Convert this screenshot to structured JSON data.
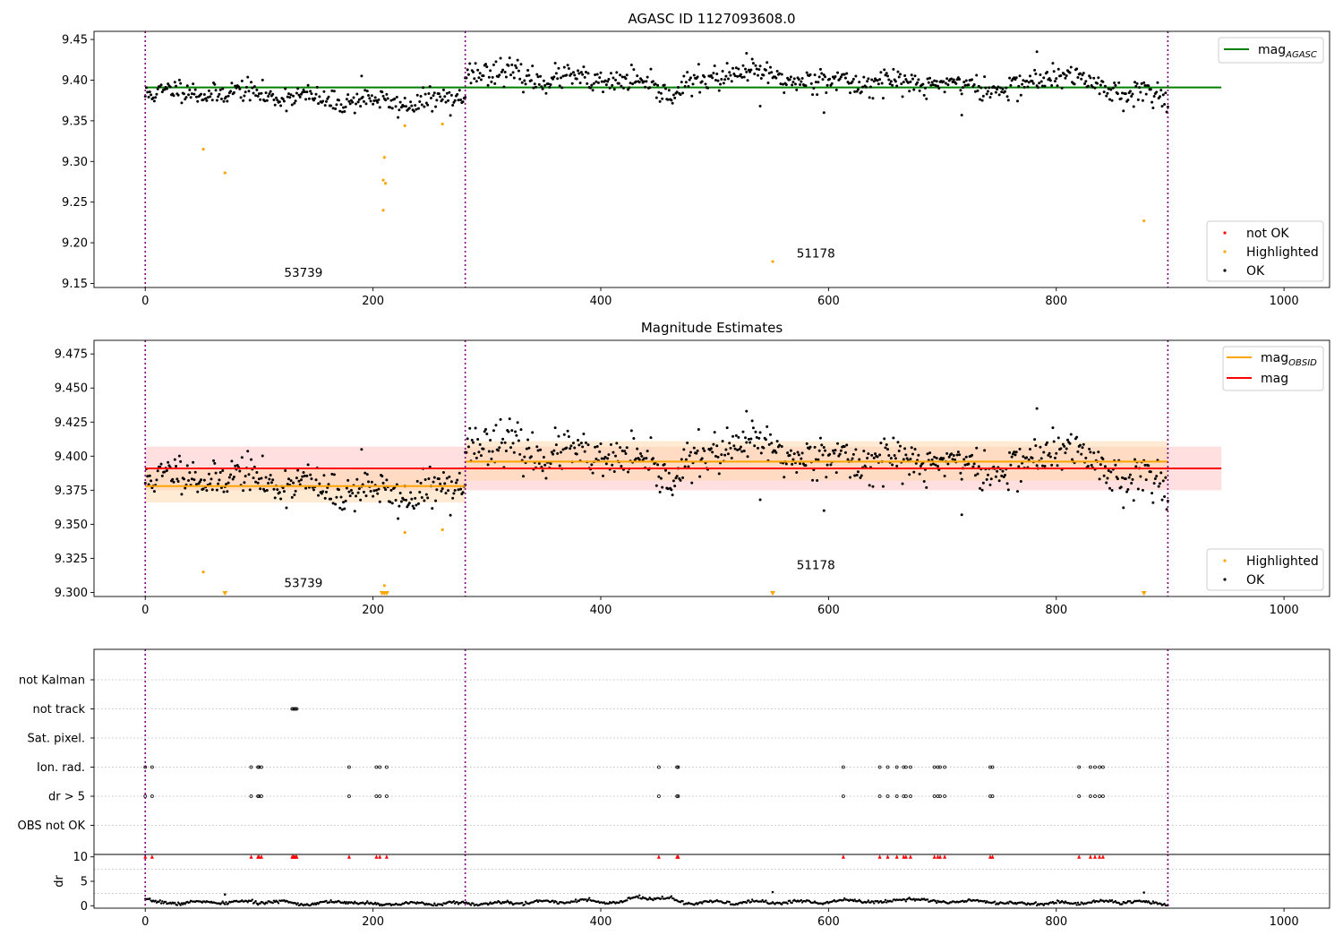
{
  "chart_data": [
    {
      "type": "scatter",
      "title": "AGASC ID 1127093608.0",
      "xlim": [
        -45,
        1040
      ],
      "ylim": [
        9.145,
        9.46
      ],
      "xticks": [
        0,
        200,
        400,
        600,
        800,
        1000
      ],
      "yticks": [
        9.15,
        9.2,
        9.25,
        9.3,
        9.35,
        9.4,
        9.45
      ],
      "ytick_labels": [
        "9.15",
        "9.20",
        "9.25",
        "9.30",
        "9.35",
        "9.40",
        "9.45"
      ],
      "obs_boundaries": [
        0,
        281,
        898
      ],
      "annotations": [
        {
          "text": "53739",
          "x": 122,
          "y": 9.158
        },
        {
          "text": "51178",
          "x": 572,
          "y": 9.182
        }
      ],
      "lines": [
        {
          "name": "mag_AGASC",
          "value": 9.391,
          "x": [
            0,
            945
          ],
          "color": "#008000"
        }
      ],
      "series": [
        {
          "name": "not OK",
          "color": "#ff0000",
          "points": []
        },
        {
          "name": "Highlighted",
          "color": "#ffa500",
          "points": [
            [
              51,
              9.315
            ],
            [
              70,
              9.286
            ],
            [
              210,
              9.305
            ],
            [
              209,
              9.277
            ],
            [
              211,
              9.273
            ],
            [
              209,
              9.24
            ],
            [
              228,
              9.344
            ],
            [
              261,
              9.346
            ],
            [
              551,
              9.177
            ],
            [
              877,
              9.227
            ]
          ]
        },
        {
          "name": "OK",
          "color": "#000000",
          "segments": [
            {
              "x": [
                0,
                281
              ],
              "trend": [
                [
                  0,
                  9.386
                ],
                [
                  100,
                  9.384
                ],
                [
                  150,
                  9.376
                ],
                [
                  200,
                  9.374
                ],
                [
                  240,
                  9.372
                ],
                [
                  281,
                  9.377
                ]
              ],
              "noise": 0.009,
              "seed": 11
            },
            {
              "x": [
                281,
                898
              ],
              "trend": [
                [
                  281,
                  9.414
                ],
                [
                  350,
                  9.402
                ],
                [
                  420,
                  9.398
                ],
                [
                  460,
                  9.386
                ],
                [
                  520,
                  9.41
                ],
                [
                  560,
                  9.402
                ],
                [
                  590,
                  9.4
                ],
                [
                  620,
                  9.398
                ],
                [
                  700,
                  9.396
                ],
                [
                  760,
                  9.388
                ],
                [
                  800,
                  9.408
                ],
                [
                  840,
                  9.392
                ],
                [
                  898,
                  9.378
                ]
              ],
              "noise": 0.01,
              "seed": 23
            }
          ],
          "extreme_points": [
            [
              190,
              9.405
            ],
            [
              528,
              9.433
            ],
            [
              783,
              9.435
            ],
            [
              596,
              9.36
            ],
            [
              717,
              9.357
            ],
            [
              540,
              9.368
            ]
          ]
        }
      ],
      "legend_upper": [
        "mag_AGASC"
      ],
      "legend_lower": [
        "not OK",
        "Highlighted",
        "OK"
      ]
    },
    {
      "type": "scatter",
      "title": "Magnitude Estimates",
      "xlim": [
        -45,
        1040
      ],
      "ylim": [
        9.297,
        9.485
      ],
      "xticks": [
        0,
        200,
        400,
        600,
        800,
        1000
      ],
      "yticks": [
        9.3,
        9.325,
        9.35,
        9.375,
        9.4,
        9.425,
        9.45,
        9.475
      ],
      "ytick_labels": [
        "9.300",
        "9.325",
        "9.350",
        "9.375",
        "9.400",
        "9.425",
        "9.450",
        "9.475"
      ],
      "obs_boundaries": [
        0,
        281,
        898
      ],
      "annotations": [
        {
          "text": "53739",
          "x": 122,
          "y": 9.304
        },
        {
          "text": "51178",
          "x": 572,
          "y": 9.317
        }
      ],
      "bands": [
        {
          "x": [
            0,
            945
          ],
          "y": [
            9.375,
            9.407
          ],
          "color": "#ffc0c0",
          "opacity": 0.5
        },
        {
          "x": [
            0,
            281
          ],
          "y": [
            9.366,
            9.39
          ],
          "color": "#ffd8a8",
          "opacity": 0.5
        },
        {
          "x": [
            281,
            898
          ],
          "y": [
            9.382,
            9.411
          ],
          "color": "#ffd8a8",
          "opacity": 0.5
        }
      ],
      "lines": [
        {
          "name": "mag_OBSID",
          "color": "#ffa500",
          "segments": [
            {
              "x": [
                0,
                281
              ],
              "y": 9.378
            },
            {
              "x": [
                281,
                898
              ],
              "y": 9.396
            }
          ]
        },
        {
          "name": "mag",
          "color": "#ff0000",
          "segments": [
            {
              "x": [
                0,
                945
              ],
              "y": 9.391
            }
          ]
        }
      ],
      "series": [
        {
          "name": "Highlighted",
          "color": "#ffa500",
          "points": [
            [
              51,
              9.315
            ],
            [
              210,
              9.305
            ],
            [
              228,
              9.344
            ],
            [
              261,
              9.346
            ]
          ],
          "clipped_below": [
            70,
            208,
            210,
            212,
            551,
            877
          ]
        },
        {
          "name": "OK",
          "color": "#000000",
          "same_as_panel_1": true
        }
      ],
      "legend_upper": [
        "mag_OBSID",
        "mag"
      ],
      "legend_lower": [
        "Highlighted",
        "OK"
      ]
    },
    {
      "type": "scatter",
      "title": "",
      "xlim": [
        -45,
        1040
      ],
      "categories": [
        "not Kalman",
        "not track",
        "Sat. pixel.",
        "Ion. rad.",
        "dr > 5",
        "OBS not OK"
      ],
      "flags": {
        "not Kalman": [],
        "not track": [
          129,
          130,
          131,
          132,
          133
        ],
        "Sat. pixel.": [],
        "Ion. rad.": [
          0,
          6,
          93,
          99,
          100,
          102,
          179,
          203,
          206,
          212,
          451,
          467,
          468,
          613,
          645,
          652,
          660,
          666,
          668,
          672,
          693,
          696,
          698,
          702,
          742,
          744,
          820,
          830,
          834,
          838,
          841
        ],
        "dr > 5": [
          0,
          6,
          93,
          99,
          100,
          102,
          179,
          203,
          206,
          212,
          451,
          467,
          468,
          613,
          645,
          652,
          660,
          666,
          668,
          672,
          693,
          696,
          698,
          702,
          742,
          744,
          820,
          830,
          834,
          838,
          841
        ],
        "OBS not OK": []
      }
    },
    {
      "type": "scatter",
      "title": "",
      "ylabel": "dr",
      "xlim": [
        -45,
        1040
      ],
      "ylim": [
        -0.5,
        10.5
      ],
      "xticks": [
        0,
        200,
        400,
        600,
        800,
        1000
      ],
      "yticks": [
        0,
        5,
        10
      ],
      "ytick_labels": [
        "0",
        "5",
        "10"
      ],
      "capped_markers": {
        "value": 10,
        "color": "#ff0000",
        "x": [
          0,
          6,
          93,
          99,
          100,
          102,
          129,
          130,
          131,
          132,
          133,
          179,
          203,
          206,
          212,
          451,
          467,
          468,
          613,
          645,
          652,
          660,
          666,
          668,
          672,
          693,
          696,
          698,
          702,
          742,
          744,
          820,
          830,
          834,
          838,
          841
        ]
      },
      "dr_trend": [
        [
          0,
          1.2
        ],
        [
          10,
          0.6
        ],
        [
          120,
          0.8
        ],
        [
          135,
          0.4
        ],
        [
          180,
          0.8
        ],
        [
          200,
          0.3
        ],
        [
          281,
          0.5
        ],
        [
          300,
          0.4
        ],
        [
          380,
          1.0
        ],
        [
          420,
          0.6
        ],
        [
          430,
          1.7
        ],
        [
          460,
          1.5
        ],
        [
          470,
          0.6
        ],
        [
          600,
          0.8
        ],
        [
          620,
          1.2
        ],
        [
          650,
          0.6
        ],
        [
          670,
          1.7
        ],
        [
          690,
          0.8
        ],
        [
          740,
          1.0
        ],
        [
          760,
          0.4
        ],
        [
          820,
          0.6
        ],
        [
          850,
          0.9
        ],
        [
          898,
          0.5
        ]
      ],
      "dr_outliers": [
        [
          70,
          2.3
        ],
        [
          551,
          2.8
        ],
        [
          877,
          2.7
        ]
      ]
    }
  ]
}
